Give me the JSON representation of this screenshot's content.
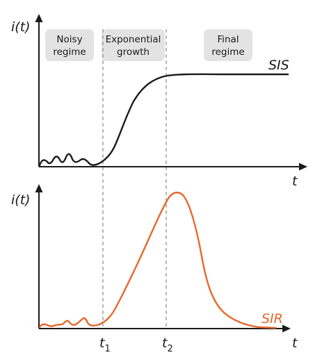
{
  "top_panel": {
    "y_axis_label": "i(t)",
    "x_axis_label": "t",
    "curve_label": "SIS",
    "regimes": [
      {
        "line1": "Noisy",
        "line2": "regime"
      },
      {
        "line1": "Exponential",
        "line2": "growth"
      },
      {
        "line1": "Final",
        "line2": "regime"
      }
    ]
  },
  "bottom_panel": {
    "y_axis_label": "i(t)",
    "x_axis_label": "t",
    "curve_label": "SIR",
    "t1_base": "t",
    "t1_sub": "1",
    "t2_base": "t",
    "t2_sub": "2"
  },
  "colors": {
    "sis_curve": "#1a1a1a",
    "sir_curve": "#e8672a",
    "regime_box": "#e3e3e3",
    "divider": "#8a8a8a"
  }
}
